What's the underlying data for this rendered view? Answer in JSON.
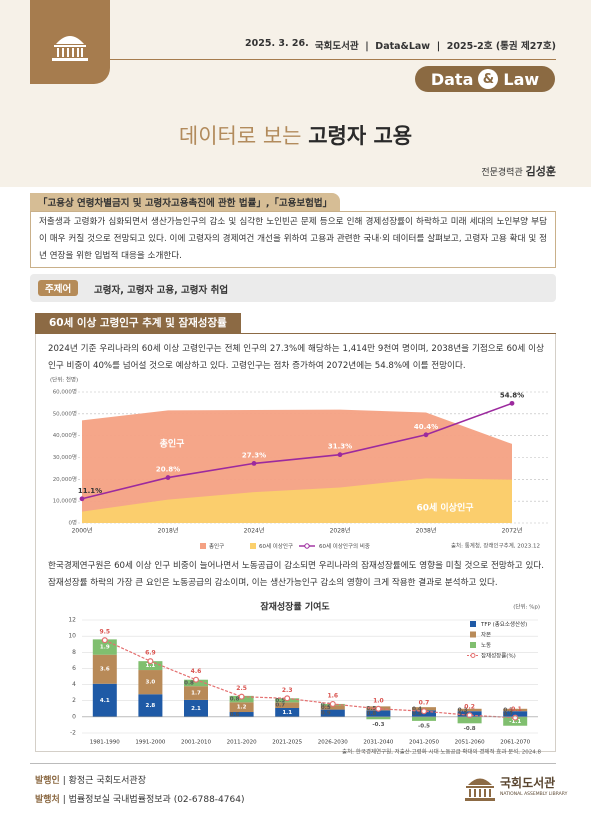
{
  "header": {
    "date": "2025. 3. 26.",
    "publication": "국회도서관  |  Data&Law  |  2025-2호 (통권 제27호)",
    "badge_left": "Data",
    "badge_mid": "&",
    "badge_right": "Law",
    "title_light": "데이터로 보는",
    "title_bold": "고령자 고용",
    "author_role": "전문경력관",
    "author_name": "김성훈"
  },
  "intro": {
    "laws": "「고용상 연령차별금지 및 고령자고용촉진에 관한 법률」,「고용보험법」",
    "text": "저출생과 고령화가 심화되면서 생산가능인구의 감소 및 심각한 노인빈곤 문제 등으로 인해 경제성장률이 하락하고 미래 세대의 노인부양 부담이 매우 커질 것으로 전망되고 있다. 이에 고령자의 경제여건 개선을 위하여 고용과 관련한 국내·외 데이터를 살펴보고, 고령자 고용 확대 및 정년 연장을 위한 입법적 대응을 소개한다."
  },
  "keywords": {
    "label": "주제어",
    "text": "고령자, 고령자 고용, 고령자 취업"
  },
  "section": {
    "title": "60세 이상 고령인구 추계 및 잠재성장률",
    "paragraph1": "2024년 기준 우리나라의 60세 이상 고령인구는 전체 인구의 27.3%에 해당하는 1,414만 9천여 명이며, 2038년을 기점으로 60세 이상 인구 비중이 40%를 넘어설 것으로 예상하고 있다. 고령인구는 점차 증가하여 2072년에는 54.8%에 이를 전망이다.",
    "paragraph2": "한국경제연구원은 60세 이상 인구 비중이 늘어나면서 노동공급이 감소되면 우리나라의 잠재성장률에도 영향을 미칠 것으로 전망하고 있다. 잠재성장률 하락의 가장 큰 요인은 노동공급의 감소이며, 이는 생산가능인구 감소의 영향이 크게 작용한 결과로 분석하고 있다."
  },
  "chart_data": [
    {
      "type": "area",
      "unit": "(단위: 천명)",
      "source": "출처: 통계청, 장래인구추계, 2023.12",
      "categories": [
        "2000년",
        "2018년",
        "2024년",
        "2028년",
        "2038년",
        "2072년"
      ],
      "series": [
        {
          "name": "총인구",
          "type": "area",
          "color": "#f4a183",
          "values": [
            47008,
            51607,
            51751,
            51940,
            50600,
            36222
          ]
        },
        {
          "name": "60세 이상인구",
          "type": "area",
          "color": "#fbd06c",
          "values": [
            5218,
            10730,
            14149,
            16260,
            20440,
            19850
          ]
        },
        {
          "name": "60세 이상인구의 비중",
          "type": "line",
          "axis": "y2",
          "color": "#9c2a9e",
          "values": [
            11.1,
            20.8,
            27.3,
            31.3,
            40.4,
            54.8
          ],
          "value_labels": [
            "11.1%",
            "20.8%",
            "27.3%",
            "31.3%",
            "40.4%",
            "54.8%"
          ]
        }
      ],
      "ylim": [
        0,
        60000
      ],
      "yticks": [
        {
          "value": 0,
          "label": "0명"
        },
        {
          "value": 10000,
          "label": "10,000명"
        },
        {
          "value": 20000,
          "label": "20,000명"
        },
        {
          "value": 30000,
          "label": "30,000명"
        },
        {
          "value": 40000,
          "label": "40,000명"
        },
        {
          "value": 50000,
          "label": "50,000명"
        },
        {
          "value": 60000,
          "label": "60,000명"
        }
      ],
      "y2lim": [
        0,
        60
      ],
      "grid": true,
      "annotations": [
        "총인구",
        "60세 이상인구"
      ]
    },
    {
      "type": "bar",
      "stacked": true,
      "title": "잠재성장률 기여도",
      "unit": "(단위: %p)",
      "source": "출처: 한국경제연구원, 저출산·고령화 시대 노동공급 확대의 경제적 효과 분석, 2024.8",
      "categories": [
        "1981-1990",
        "1991-2000",
        "2001-2010",
        "2011-2020",
        "2021-2025",
        "2026-2030",
        "2031-2040",
        "2041-2050",
        "2051-2060",
        "2061-2070"
      ],
      "series": [
        {
          "name": "TFP (총요소생산성)",
          "color": "#1f5aa6",
          "values": [
            4.1,
            2.8,
            2.1,
            0.6,
            1.1,
            0.9,
            0.8,
            0.8,
            0.7,
            0.7
          ],
          "value_labels": [
            "4.1",
            "2.8",
            "2.1",
            "0.6",
            "1.1",
            "0.9",
            "0.8",
            "0.8",
            "0.7",
            "0.7"
          ]
        },
        {
          "name": "자본",
          "color": "#b88a58",
          "values": [
            3.6,
            3.0,
            1.7,
            1.2,
            0.7,
            0.5,
            0.5,
            0.4,
            0.3,
            0.3
          ],
          "value_labels": [
            "3.6",
            "3.0",
            "1.7",
            "1.2",
            "0.7",
            "0.5",
            "0.5",
            "0.4",
            "0.3",
            "0.3"
          ]
        },
        {
          "name": "노동",
          "color": "#80bf6f",
          "values": [
            1.9,
            1.1,
            0.8,
            0.8,
            0.5,
            0.2,
            -0.3,
            -0.5,
            -0.8,
            -1.1
          ],
          "value_labels": [
            "1.9",
            "1.1",
            "0.8",
            "0.8",
            "0.5",
            "0.2",
            "-0.3",
            "-0.5",
            "-0.8",
            "-1.1"
          ]
        },
        {
          "name": "잠재성장률(%)",
          "type": "line",
          "color": "#e46f6f",
          "values": [
            9.5,
            6.9,
            4.6,
            2.5,
            2.3,
            1.6,
            1.0,
            0.7,
            0.2,
            -0.1
          ],
          "value_labels": [
            "9.5",
            "6.9",
            "4.6",
            "2.5",
            "2.3",
            "1.6",
            "1.0",
            "0.7",
            "0.2",
            "-0.1"
          ]
        }
      ],
      "ylim": [
        -2,
        12
      ],
      "yticks": [
        -2,
        0,
        2,
        4,
        6,
        8,
        10,
        12
      ],
      "grid": true
    }
  ],
  "footer": {
    "publisher_label": "발행인",
    "publisher": "| 황정근 국회도서관장",
    "issuer_label": "발행처",
    "issuer": "| 법률정보실 국내법률정보과 (02-6788-4764)",
    "logo": "국회도서관",
    "logo_en": "NATIONAL ASSEMBLY LIBRARY"
  }
}
